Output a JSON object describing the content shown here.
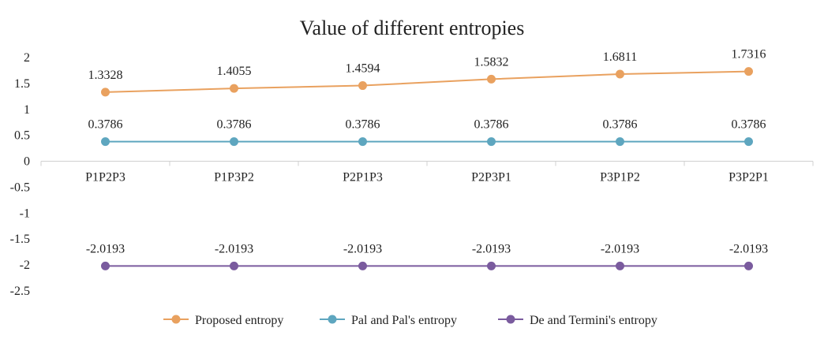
{
  "chart_data": {
    "type": "line",
    "title": "Value of different entropies",
    "categories": [
      "P1P2P3",
      "P1P3P2",
      "P2P1P3",
      "P2P3P1",
      "P3P1P2",
      "P3P2P1"
    ],
    "ylim": [
      -2.5,
      2
    ],
    "yticks": [
      "2",
      "1.5",
      "1",
      "0.5",
      "0",
      "-0.5",
      "-1",
      "-1.5",
      "-2",
      "-2.5"
    ],
    "grid": false,
    "legend": "bottom",
    "series": [
      {
        "name": "Proposed entropy",
        "color": "#E9A15F",
        "values": [
          1.3328,
          1.4055,
          1.4594,
          1.5832,
          1.6811,
          1.7316
        ],
        "labels": [
          "1.3328",
          "1.4055",
          "1.4594",
          "1.5832",
          "1.6811",
          "1.7316"
        ]
      },
      {
        "name": "Pal  and Pal's entropy",
        "color": "#5EA6BF",
        "values": [
          0.3786,
          0.3786,
          0.3786,
          0.3786,
          0.3786,
          0.3786
        ],
        "labels": [
          "0.3786",
          "0.3786",
          "0.3786",
          "0.3786",
          "0.3786",
          "0.3786"
        ]
      },
      {
        "name": "De and Termini's entropy",
        "color": "#7A5B9E",
        "values": [
          -2.0193,
          -2.0193,
          -2.0193,
          -2.0193,
          -2.0193,
          -2.0193
        ],
        "labels": [
          "-2.0193",
          "-2.0193",
          "-2.0193",
          "-2.0193",
          "-2.0193",
          "-2.0193"
        ]
      }
    ]
  }
}
